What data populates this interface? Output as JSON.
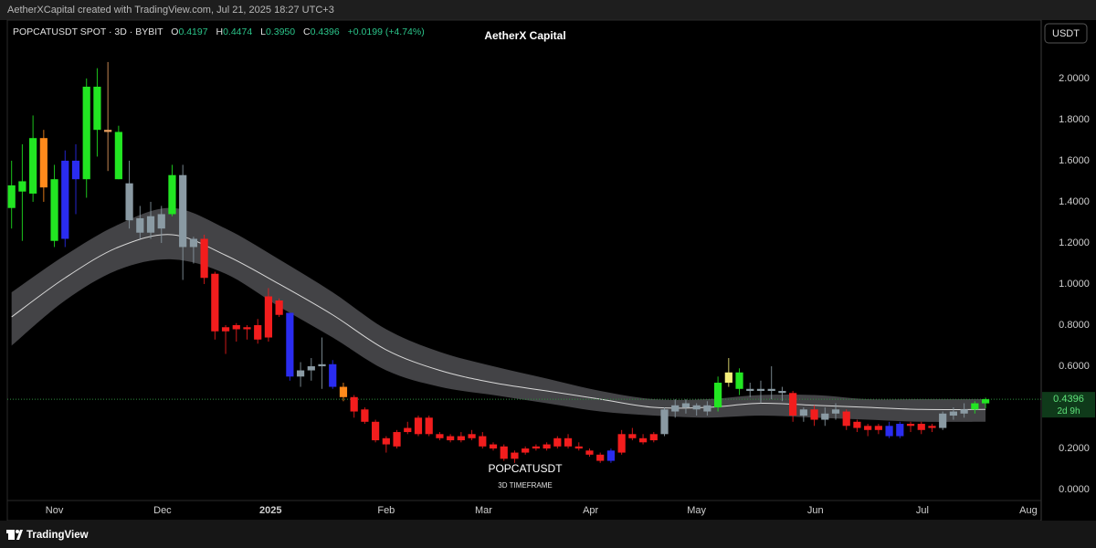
{
  "header": {
    "attribution": "AetherXCapital created with TradingView.com, Jul 21, 2025 18:27 UTC+3"
  },
  "footer": {
    "brand": "TradingView"
  },
  "currency_button": "USDT",
  "chart_data": {
    "type": "candlestick",
    "title": "AetherX Capital",
    "annotation": "POPCATUSDT",
    "annotation_sub": "3D TIMEFRAME",
    "legend": {
      "symbol": "POPCATUSDT SPOT · 3D · BYBIT",
      "ohlc": [
        {
          "key": "O",
          "value": "0.4197"
        },
        {
          "key": "H",
          "value": "0.4474"
        },
        {
          "key": "L",
          "value": "0.3950"
        },
        {
          "key": "C",
          "value": "0.4396"
        }
      ],
      "change": "+0.0199 (+4.74%)"
    },
    "open": [
      1.37,
      1.45,
      1.44,
      1.71,
      1.21,
      1.22,
      1.6,
      1.51,
      1.75,
      1.75,
      1.51,
      1.49,
      1.32,
      1.25,
      1.27,
      1.34,
      1.53,
      1.18,
      1.22,
      1.05,
      0.79,
      0.8,
      0.79,
      0.8,
      0.74,
      0.92,
      0.86,
      0.55,
      0.58,
      0.6,
      0.61,
      0.5,
      0.45,
      0.39,
      0.33,
      0.25,
      0.21,
      0.28,
      0.27,
      0.35,
      0.27,
      0.26,
      0.26,
      0.25,
      0.26,
      0.22,
      0.21,
      0.18,
      0.18,
      0.2,
      0.2,
      0.21,
      0.25,
      0.21,
      0.19,
      0.17,
      0.14,
      0.18,
      0.27,
      0.23,
      0.24,
      0.27,
      0.38,
      0.4,
      0.41,
      0.38,
      0.4,
      0.52,
      0.57,
      0.49,
      0.48,
      0.49,
      0.48,
      0.47,
      0.36,
      0.39,
      0.34,
      0.37,
      0.38,
      0.33,
      0.31,
      0.29,
      0.26,
      0.26,
      0.32,
      0.32,
      0.3,
      0.3,
      0.36,
      0.37,
      0.39,
      0.4197
    ],
    "high": [
      1.6,
      1.68,
      1.82,
      1.75,
      1.58,
      1.65,
      1.68,
      2.0,
      2.05,
      2.08,
      1.77,
      1.6,
      1.38,
      1.4,
      1.38,
      1.58,
      1.58,
      1.23,
      1.24,
      1.06,
      0.8,
      0.81,
      0.8,
      0.83,
      0.98,
      0.93,
      0.86,
      0.62,
      0.64,
      0.74,
      0.63,
      0.52,
      0.46,
      0.4,
      0.34,
      0.26,
      0.29,
      0.33,
      0.36,
      0.36,
      0.28,
      0.27,
      0.28,
      0.29,
      0.28,
      0.23,
      0.22,
      0.19,
      0.21,
      0.22,
      0.23,
      0.26,
      0.27,
      0.23,
      0.2,
      0.18,
      0.2,
      0.29,
      0.3,
      0.27,
      0.28,
      0.4,
      0.44,
      0.44,
      0.42,
      0.43,
      0.55,
      0.64,
      0.59,
      0.52,
      0.53,
      0.6,
      0.5,
      0.48,
      0.4,
      0.41,
      0.4,
      0.42,
      0.39,
      0.34,
      0.32,
      0.32,
      0.33,
      0.33,
      0.33,
      0.33,
      0.32,
      0.38,
      0.4,
      0.42,
      0.43,
      0.4474
    ],
    "low": [
      1.27,
      1.21,
      1.4,
      1.4,
      1.18,
      1.18,
      1.34,
      1.42,
      1.62,
      1.55,
      1.51,
      1.27,
      1.22,
      1.22,
      1.2,
      1.33,
      1.02,
      1.1,
      1.0,
      0.73,
      0.66,
      0.72,
      0.73,
      0.71,
      0.72,
      0.84,
      0.53,
      0.5,
      0.53,
      0.49,
      0.49,
      0.43,
      0.35,
      0.32,
      0.23,
      0.18,
      0.2,
      0.27,
      0.26,
      0.26,
      0.24,
      0.23,
      0.23,
      0.24,
      0.2,
      0.19,
      0.14,
      0.13,
      0.17,
      0.19,
      0.19,
      0.2,
      0.2,
      0.19,
      0.16,
      0.13,
      0.13,
      0.17,
      0.24,
      0.22,
      0.23,
      0.26,
      0.35,
      0.37,
      0.36,
      0.36,
      0.38,
      0.5,
      0.46,
      0.45,
      0.42,
      0.44,
      0.43,
      0.33,
      0.33,
      0.31,
      0.31,
      0.34,
      0.29,
      0.28,
      0.26,
      0.27,
      0.25,
      0.25,
      0.28,
      0.27,
      0.28,
      0.29,
      0.34,
      0.35,
      0.37,
      0.395
    ],
    "close": [
      1.48,
      1.5,
      1.71,
      1.47,
      1.51,
      1.6,
      1.51,
      1.96,
      1.96,
      1.74,
      1.74,
      1.31,
      1.25,
      1.33,
      1.34,
      1.53,
      1.18,
      1.22,
      1.03,
      0.77,
      0.77,
      0.78,
      0.78,
      0.73,
      0.94,
      0.85,
      0.55,
      0.58,
      0.6,
      0.61,
      0.5,
      0.45,
      0.38,
      0.33,
      0.24,
      0.22,
      0.28,
      0.3,
      0.35,
      0.27,
      0.25,
      0.24,
      0.24,
      0.27,
      0.21,
      0.2,
      0.15,
      0.15,
      0.2,
      0.21,
      0.22,
      0.25,
      0.21,
      0.2,
      0.17,
      0.14,
      0.19,
      0.27,
      0.25,
      0.25,
      0.27,
      0.39,
      0.41,
      0.42,
      0.39,
      0.41,
      0.52,
      0.57,
      0.49,
      0.48,
      0.49,
      0.48,
      0.47,
      0.36,
      0.39,
      0.34,
      0.37,
      0.39,
      0.31,
      0.3,
      0.29,
      0.31,
      0.31,
      0.32,
      0.31,
      0.29,
      0.31,
      0.37,
      0.38,
      0.39,
      0.42,
      0.4396
    ],
    "colors": [
      "#22e622",
      "#22e622",
      "#22e622",
      "#ff8a1c",
      "#22e622",
      "#2a2cf0",
      "#2a2cf0",
      "#22e622",
      "#22e622",
      "#e8a060",
      "#22e622",
      "#8a9aa3",
      "#8a9aa3",
      "#8a9aa3",
      "#8a9aa3",
      "#22e622",
      "#8a9aa3",
      "#8a9aa3",
      "#f21d1d",
      "#f21d1d",
      "#f21d1d",
      "#f21d1d",
      "#f21d1d",
      "#f21d1d",
      "#f21d1d",
      "#f21d1d",
      "#2a2cf0",
      "#8a9aa3",
      "#8a9aa3",
      "#8a9aa3",
      "#2a2cf0",
      "#ff8a1c",
      "#f21d1d",
      "#f21d1d",
      "#f21d1d",
      "#f21d1d",
      "#f21d1d",
      "#f21d1d",
      "#f21d1d",
      "#f21d1d",
      "#f21d1d",
      "#f21d1d",
      "#f21d1d",
      "#f21d1d",
      "#f21d1d",
      "#f21d1d",
      "#f21d1d",
      "#f21d1d",
      "#f21d1d",
      "#f21d1d",
      "#f21d1d",
      "#f21d1d",
      "#f21d1d",
      "#f21d1d",
      "#f21d1d",
      "#f21d1d",
      "#2a2cf0",
      "#f21d1d",
      "#f21d1d",
      "#f21d1d",
      "#f21d1d",
      "#8a9aa3",
      "#8a9aa3",
      "#8a9aa3",
      "#8a9aa3",
      "#8a9aa3",
      "#22e622",
      "#f4ee7a",
      "#22e622",
      "#8a9aa3",
      "#8a9aa3",
      "#8a9aa3",
      "#8a9aa3",
      "#f21d1d",
      "#8a9aa3",
      "#f21d1d",
      "#8a9aa3",
      "#8a9aa3",
      "#f21d1d",
      "#f21d1d",
      "#f21d1d",
      "#f21d1d",
      "#2a2cf0",
      "#2a2cf0",
      "#f21d1d",
      "#f21d1d",
      "#f21d1d",
      "#8a9aa3",
      "#8a9aa3",
      "#8a9aa3",
      "#22e622",
      "#22e622"
    ],
    "band": {
      "fill": "#4a4a4e",
      "line_color": "#d8d8d8",
      "x": [
        0,
        5,
        10,
        15,
        20,
        25,
        30,
        35,
        40,
        45,
        50,
        55,
        60,
        65,
        70,
        75,
        80,
        85,
        91
      ],
      "upper": [
        0.96,
        1.14,
        1.29,
        1.37,
        1.27,
        1.12,
        0.96,
        0.78,
        0.67,
        0.6,
        0.54,
        0.48,
        0.44,
        0.44,
        0.46,
        0.46,
        0.44,
        0.44,
        0.44
      ],
      "middle": [
        0.84,
        1.03,
        1.18,
        1.24,
        1.14,
        1.0,
        0.85,
        0.68,
        0.58,
        0.52,
        0.48,
        0.44,
        0.4,
        0.4,
        0.42,
        0.41,
        0.4,
        0.39,
        0.39
      ],
      "lower": [
        0.7,
        0.92,
        1.07,
        1.12,
        1.05,
        0.89,
        0.74,
        0.58,
        0.5,
        0.46,
        0.42,
        0.38,
        0.36,
        0.35,
        0.36,
        0.35,
        0.34,
        0.33,
        0.33
      ]
    },
    "price_label": {
      "value": 0.4396,
      "label": "0.4396",
      "countdown": "2d 9h"
    },
    "xlim": [
      -0.4,
      96.2
    ],
    "xticks": [
      {
        "value": 4,
        "label": "Nov"
      },
      {
        "value": 14.1,
        "label": "Dec"
      },
      {
        "value": 24.2,
        "label": "2025"
      },
      {
        "value": 35,
        "label": "Feb"
      },
      {
        "value": 44.1,
        "label": "Mar"
      },
      {
        "value": 54.1,
        "label": "Apr"
      },
      {
        "value": 64,
        "label": "May"
      },
      {
        "value": 75.1,
        "label": "Jun"
      },
      {
        "value": 85.1,
        "label": "Jul"
      },
      {
        "value": 95,
        "label": "Aug"
      }
    ],
    "ylim": [
      -0.053,
      2.284
    ],
    "yticks": [
      {
        "value": 0,
        "label": "0.0000"
      },
      {
        "value": 0.2,
        "label": "0.2000"
      },
      {
        "value": 0.6,
        "label": "0.6000"
      },
      {
        "value": 0.8,
        "label": "0.8000"
      },
      {
        "value": 1,
        "label": "1.0000"
      },
      {
        "value": 1.2,
        "label": "1.2000"
      },
      {
        "value": 1.4,
        "label": "1.4000"
      },
      {
        "value": 1.6,
        "label": "1.6000"
      },
      {
        "value": 1.8,
        "label": "1.8000"
      },
      {
        "value": 2,
        "label": "2.0000"
      }
    ],
    "grid": false
  }
}
